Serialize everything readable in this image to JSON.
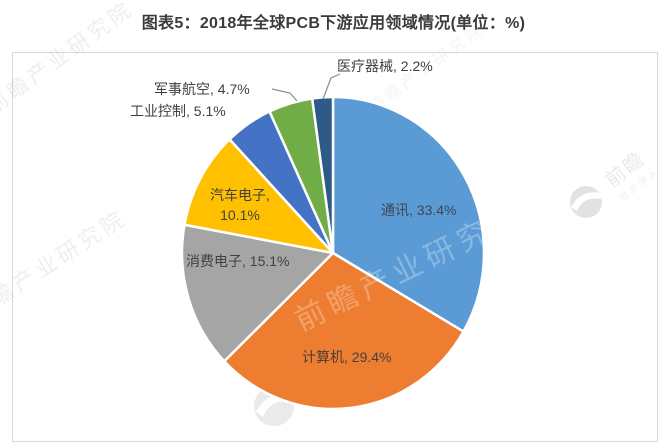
{
  "title": "图表5：2018年全球PCB下游应用领域情况(单位：%)",
  "watermark": {
    "text": "前瞻产业研究院",
    "brand": "前瞻",
    "brand_sub": "经济学人"
  },
  "chart_data": {
    "type": "pie",
    "title": "图表5：2018年全球PCB下游应用领域情况(单位：%)",
    "unit": "%",
    "start_angle_deg": 0,
    "direction": "clockwise",
    "legend": "none",
    "segments": [
      {
        "id": "communications",
        "name": "通讯",
        "value": 33.4,
        "color": "#5B9BD5",
        "label_placement": "inside",
        "display_lines": [
          "通讯, 33.4%"
        ]
      },
      {
        "id": "computer",
        "name": "计算机",
        "value": 29.4,
        "color": "#ED7D31",
        "label_placement": "inside",
        "display_lines": [
          "计算机, 29.4%"
        ]
      },
      {
        "id": "consumer-electronics",
        "name": "消费电子",
        "value": 15.1,
        "color": "#A5A5A5",
        "label_placement": "inside",
        "display_lines": [
          "消费电子, 15.1%"
        ]
      },
      {
        "id": "automotive-electronics",
        "name": "汽车电子",
        "value": 10.1,
        "color": "#FFC000",
        "label_placement": "inside",
        "display_lines": [
          "汽车电子,",
          "10.1%"
        ]
      },
      {
        "id": "industrial-control",
        "name": "工业控制",
        "value": 5.1,
        "color": "#4472C4",
        "label_placement": "outside",
        "display_lines": [
          "工业控制, 5.1%"
        ]
      },
      {
        "id": "military-aerospace",
        "name": "军事航空",
        "value": 4.7,
        "color": "#70AD47",
        "label_placement": "outside",
        "display_lines": [
          "军事航空, 4.7%"
        ]
      },
      {
        "id": "medical-devices",
        "name": "医疗器械",
        "value": 2.2,
        "color": "#2D5A87",
        "label_placement": "outside",
        "display_lines": [
          "医疗器械, 2.2%"
        ]
      }
    ]
  }
}
